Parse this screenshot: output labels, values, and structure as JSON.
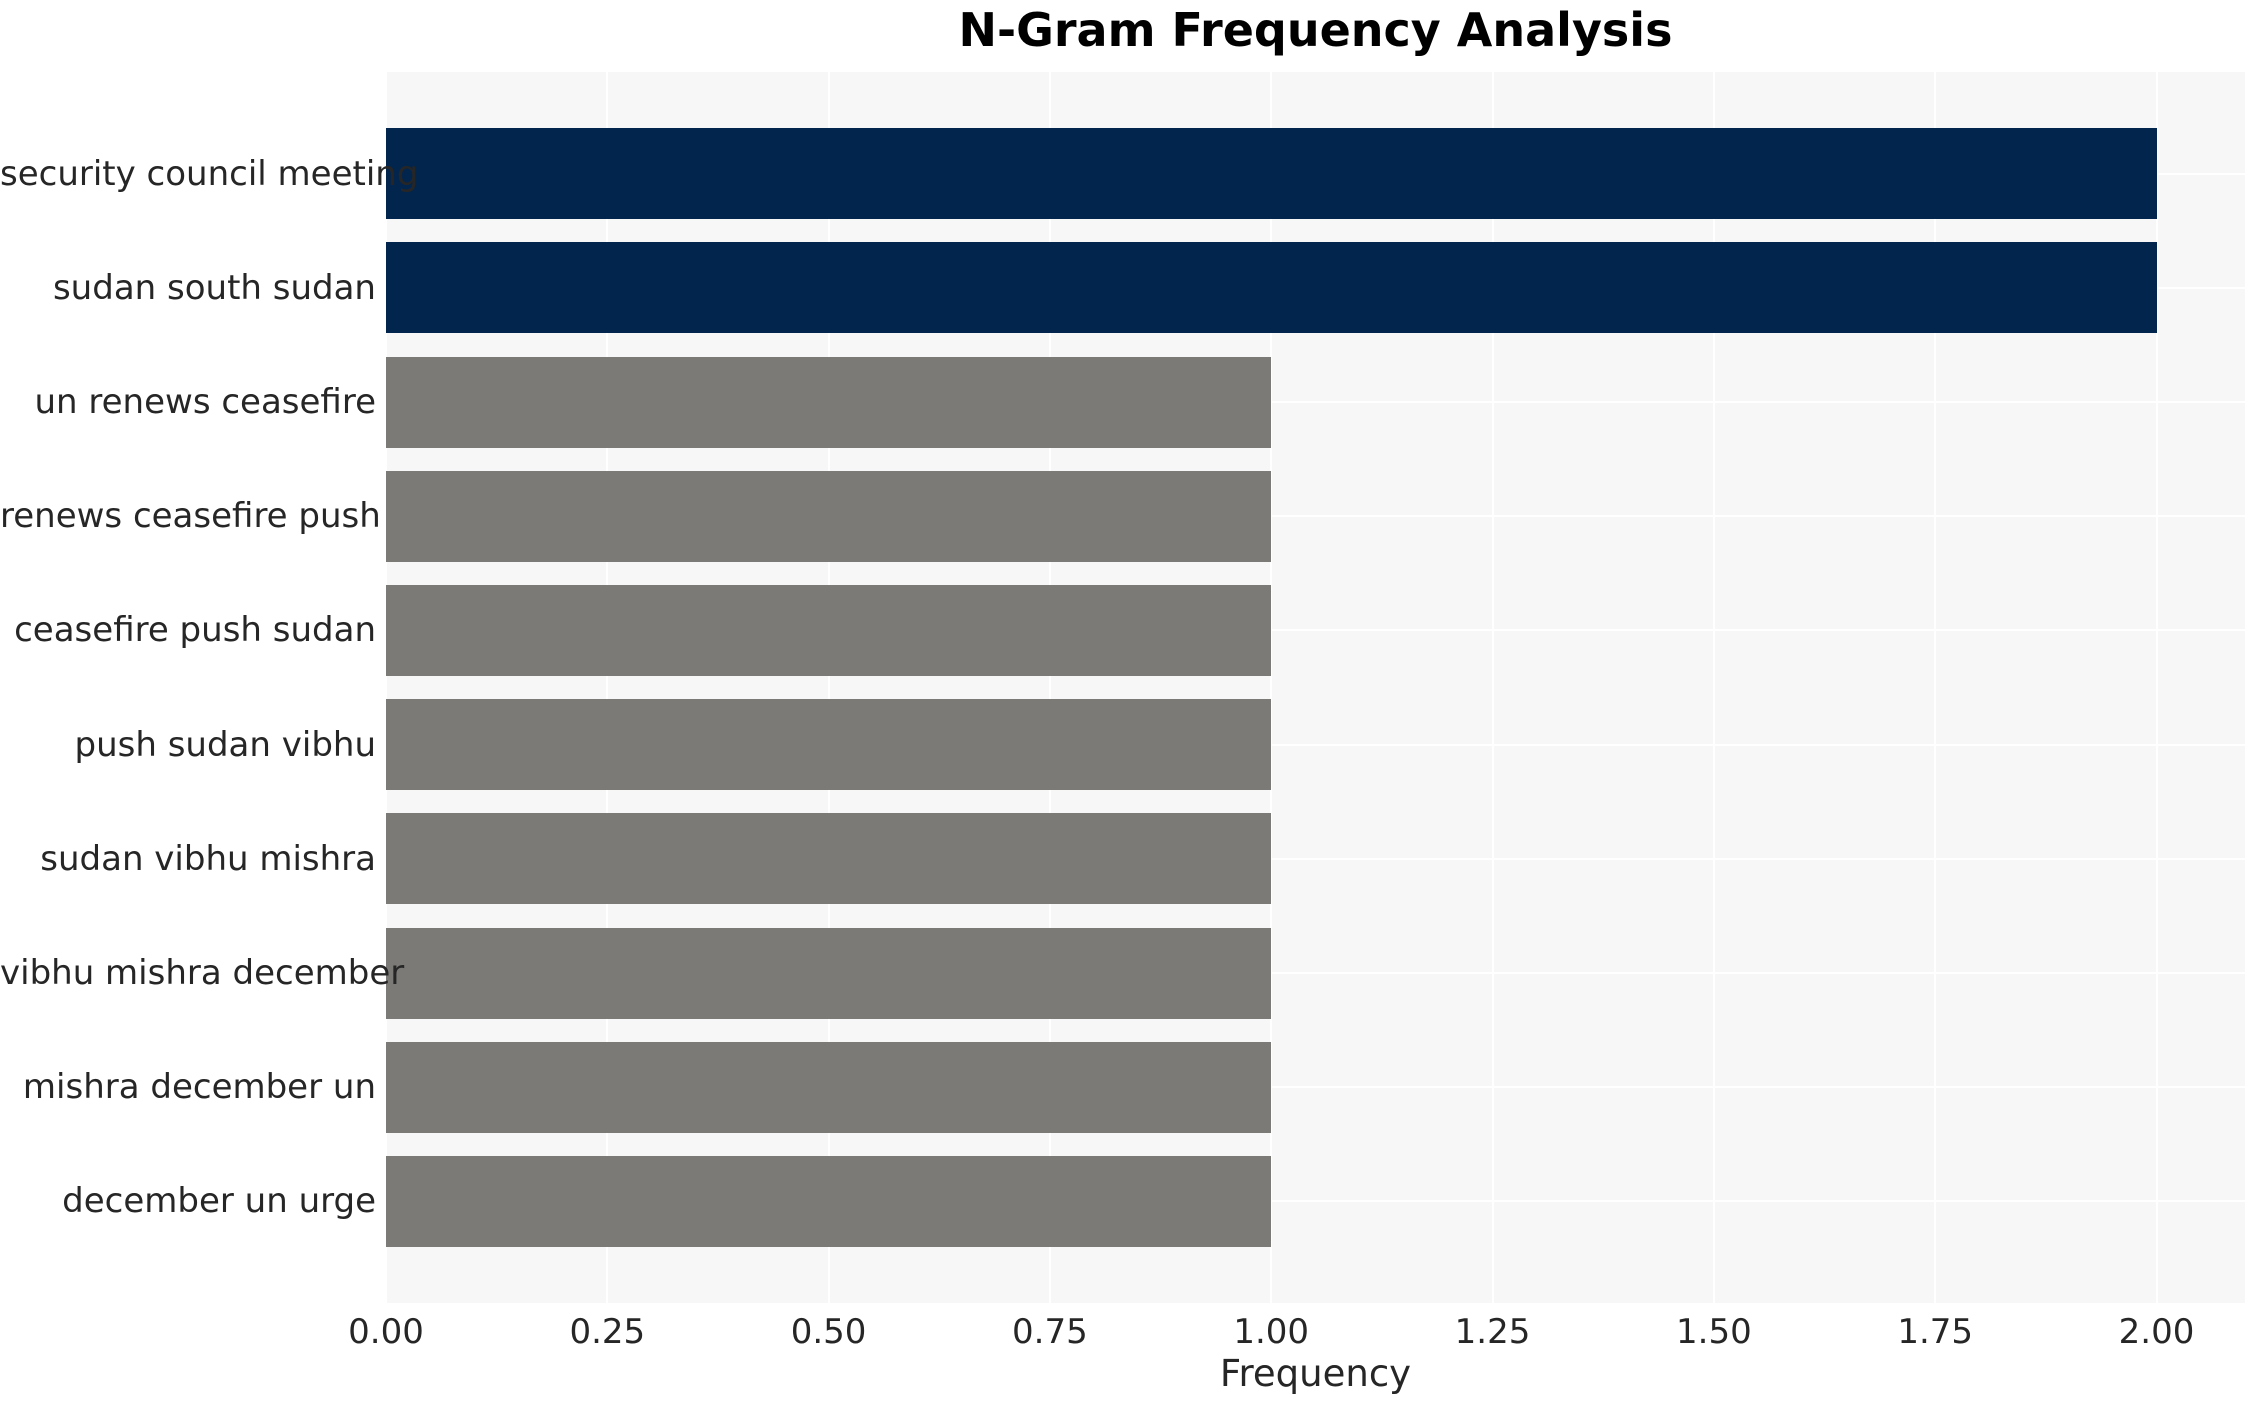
{
  "chart_data": {
    "type": "bar",
    "orientation": "horizontal",
    "title": "N-Gram Frequency Analysis",
    "xlabel": "Frequency",
    "ylabel": "",
    "categories": [
      "security council meeting",
      "sudan south sudan",
      "un renews ceasefire",
      "renews ceasefire push",
      "ceasefire push sudan",
      "push sudan vibhu",
      "sudan vibhu mishra",
      "vibhu mishra december",
      "mishra december un",
      "december un urge"
    ],
    "values": [
      2,
      2,
      1,
      1,
      1,
      1,
      1,
      1,
      1,
      1
    ],
    "bar_colors": [
      "#02254d",
      "#02254d",
      "#7b7a77",
      "#7b7a77",
      "#7b7a77",
      "#7b7a77",
      "#7b7a77",
      "#7b7a77",
      "#7b7a77",
      "#7b7a77"
    ],
    "xlim": [
      0,
      2.1
    ],
    "xtick_values": [
      0,
      0.25,
      0.5,
      0.75,
      1.0,
      1.25,
      1.5,
      1.75,
      2.0
    ],
    "xtick_labels": [
      "0.00",
      "0.25",
      "0.50",
      "0.75",
      "1.00",
      "1.25",
      "1.50",
      "1.75",
      "2.00"
    ],
    "grid": true,
    "legend_position": "none",
    "colors": {
      "highlight": "#02254d",
      "muted": "#7b7a77",
      "plot_background": "#f7f7f7",
      "gridline": "#ffffff",
      "text": "#262626",
      "title_text": "#000000"
    }
  }
}
